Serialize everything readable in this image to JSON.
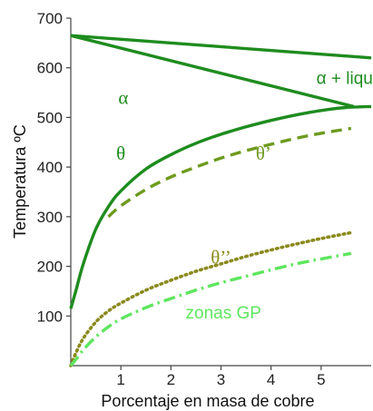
{
  "chart_data": {
    "type": "line",
    "title": "",
    "xlabel": "Porcentaje en masa de cobre",
    "ylabel": "Temperatura ºC",
    "xlim": [
      0,
      6
    ],
    "ylim": [
      0,
      700
    ],
    "xticks": [
      1,
      2,
      3,
      4,
      5
    ],
    "yticks": [
      100,
      200,
      300,
      400,
      500,
      600,
      700
    ],
    "grid": false,
    "series": [
      {
        "key": "liquidus",
        "style": "solid",
        "color": "#1e8c1e",
        "x": [
          0,
          6
        ],
        "y": [
          665,
          620
        ]
      },
      {
        "key": "solidus",
        "style": "solid",
        "color": "#1e8c1e",
        "x": [
          0,
          5.65
        ],
        "y": [
          665,
          522
        ]
      },
      {
        "key": "solvus_theta",
        "style": "solid",
        "color": "#1e8c1e",
        "x": [
          0,
          0.1,
          0.25,
          0.5,
          0.75,
          1,
          1.5,
          2,
          2.5,
          3,
          3.5,
          4,
          4.5,
          5,
          5.5,
          6
        ],
        "y": [
          115,
          150,
          205,
          275,
          320,
          352,
          396,
          425,
          448,
          466,
          481,
          494,
          505,
          514,
          520,
          522
        ]
      },
      {
        "key": "solvus_theta_prime",
        "style": "dashed",
        "color": "#6e9a1e",
        "x": [
          0.75,
          1,
          1.5,
          2,
          2.5,
          3,
          3.5,
          4,
          4.5,
          5,
          5.6
        ],
        "y": [
          300,
          322,
          355,
          380,
          400,
          418,
          433,
          446,
          458,
          468,
          478
        ]
      },
      {
        "key": "solvus_theta_double_prime",
        "style": "dotted",
        "color": "#8a8a1e",
        "x": [
          0,
          0.1,
          0.25,
          0.5,
          0.75,
          1,
          1.5,
          2,
          2.5,
          3,
          3.5,
          4,
          4.5,
          5,
          5.6
        ],
        "y": [
          0,
          25,
          55,
          88,
          110,
          126,
          152,
          172,
          190,
          205,
          220,
          233,
          245,
          256,
          268
        ]
      },
      {
        "key": "solvus_gp_zones",
        "style": "dashdot",
        "color": "#5ee65e",
        "x": [
          0,
          0.1,
          0.25,
          0.5,
          0.75,
          1,
          1.5,
          2,
          2.5,
          3,
          3.5,
          4,
          4.5,
          5,
          5.6
        ],
        "y": [
          0,
          12,
          32,
          58,
          78,
          94,
          117,
          135,
          152,
          167,
          180,
          193,
          205,
          215,
          226
        ]
      }
    ],
    "annotations": [
      {
        "key": "alpha",
        "text": "α",
        "x": 1.05,
        "y": 540,
        "color": "#1e8c1e"
      },
      {
        "key": "alpha_liquid",
        "text": "α + liquido",
        "x": 5.7,
        "y": 580,
        "color": "#1e8c1e"
      },
      {
        "key": "theta",
        "text": "θ",
        "x": 1.0,
        "y": 428,
        "color": "#1e8c1e"
      },
      {
        "key": "theta_prime",
        "text": "θ’",
        "x": 3.85,
        "y": 428,
        "color": "#6e9a1e"
      },
      {
        "key": "theta_double_prime",
        "text": "θ’’",
        "x": 3.0,
        "y": 218,
        "color": "#8a8a1e"
      },
      {
        "key": "gp_zones",
        "text": "zonas GP",
        "x": 3.05,
        "y": 108,
        "color": "#5ee65e"
      }
    ]
  }
}
